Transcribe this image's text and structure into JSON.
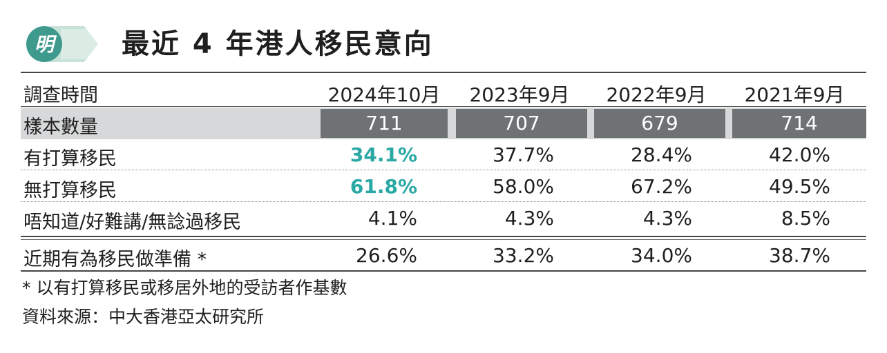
{
  "title": "最近 4 年港人移民意向",
  "logo_text": "明",
  "chart_data": {
    "type": "table",
    "title": "最近 4 年港人移民意向",
    "header_label": "調查時間",
    "columns": [
      "2024年10月",
      "2023年9月",
      "2022年9月",
      "2021年9月"
    ],
    "rows": [
      {
        "label": "樣本數量",
        "values": [
          "711",
          "707",
          "679",
          "714"
        ]
      },
      {
        "label": "有打算移民",
        "values": [
          "34.1%",
          "37.7%",
          "28.4%",
          "42.0%"
        ]
      },
      {
        "label": "無打算移民",
        "values": [
          "61.8%",
          "58.0%",
          "67.2%",
          "49.5%"
        ]
      },
      {
        "label": "唔知道/好難講/無諗過移民",
        "values": [
          "4.1%",
          "4.3%",
          "4.3%",
          "8.5%"
        ]
      },
      {
        "label": "近期有為移民做準備 *",
        "values": [
          "26.6%",
          "33.2%",
          "34.0%",
          "38.7%"
        ]
      }
    ]
  },
  "footnote": "* 以有打算移民或移居外地的受訪者作基數",
  "source": "資料來源：中大香港亞太研究所",
  "colors": {
    "highlight": "#2aa8a4",
    "sample_bg": "#6f7275",
    "logo_green": "#3d9a8c"
  }
}
